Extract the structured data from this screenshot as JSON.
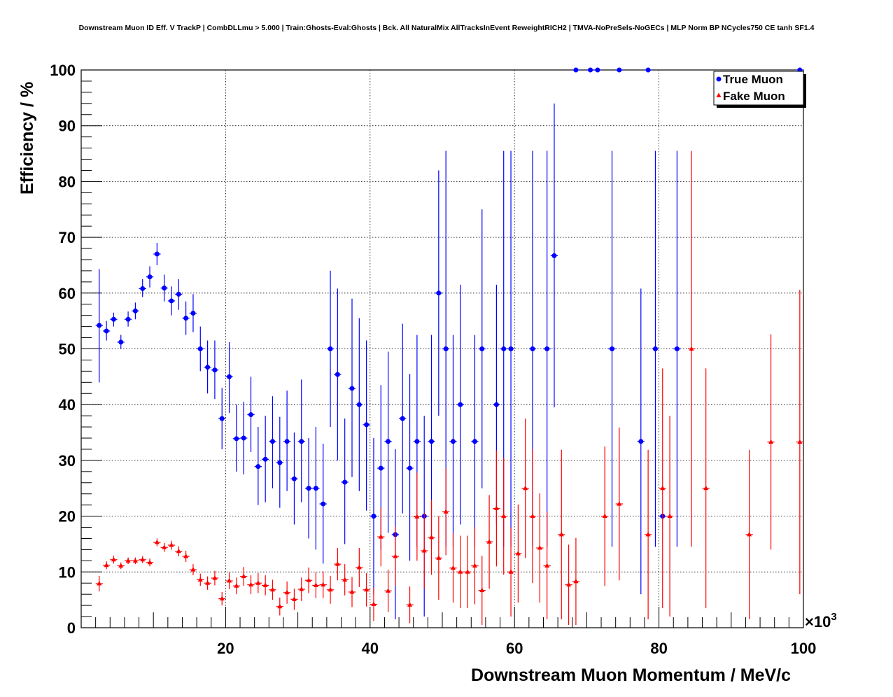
{
  "chart_data": {
    "type": "scatter",
    "title": "Downstream Muon ID Eff. V TrackP | CombDLLmu > 5.000 | Train:Ghosts-Eval:Ghosts | Bck. All NaturalMix AllTracksInEvent ReweightRICH2 | TMVA-NoPreSels-NoGECs | MLP Norm BP NCycles750 CE tanh SF1.4",
    "xlabel": "Downstream Muon Momentum / MeV/c",
    "ylabel": "Efficiency / %",
    "x_multiplier_label": "×10",
    "x_multiplier_exp": "3",
    "xlim": [
      0,
      100
    ],
    "ylim": [
      0,
      100
    ],
    "x_ticks": [
      20,
      40,
      60,
      80,
      100
    ],
    "y_ticks": [
      0,
      10,
      20,
      30,
      40,
      50,
      60,
      70,
      80,
      90,
      100
    ],
    "grid": true,
    "legend_position": "top-right",
    "series": [
      {
        "name": "True Muon",
        "color": "#0000ff",
        "marker": "circle",
        "points": [
          {
            "x": 2.5,
            "y": 54.2,
            "lo": 44.0,
            "hi": 64.3
          },
          {
            "x": 3.5,
            "y": 53.2,
            "lo": 51.5,
            "hi": 55.0
          },
          {
            "x": 4.5,
            "y": 55.3,
            "lo": 54.0,
            "hi": 56.5
          },
          {
            "x": 5.5,
            "y": 51.2,
            "lo": 50.0,
            "hi": 52.5
          },
          {
            "x": 6.5,
            "y": 55.3,
            "lo": 54.0,
            "hi": 56.7
          },
          {
            "x": 7.5,
            "y": 56.8,
            "lo": 55.3,
            "hi": 58.3
          },
          {
            "x": 8.5,
            "y": 60.8,
            "lo": 59.3,
            "hi": 62.5
          },
          {
            "x": 9.5,
            "y": 62.9,
            "lo": 61.0,
            "hi": 64.8
          },
          {
            "x": 10.5,
            "y": 67.0,
            "lo": 65.0,
            "hi": 69.0
          },
          {
            "x": 11.5,
            "y": 60.9,
            "lo": 58.5,
            "hi": 63.3
          },
          {
            "x": 12.5,
            "y": 58.6,
            "lo": 56.0,
            "hi": 61.2
          },
          {
            "x": 13.5,
            "y": 59.8,
            "lo": 57.0,
            "hi": 62.5
          },
          {
            "x": 14.5,
            "y": 55.5,
            "lo": 52.5,
            "hi": 58.5
          },
          {
            "x": 15.5,
            "y": 56.4,
            "lo": 53.0,
            "hi": 59.8
          },
          {
            "x": 16.5,
            "y": 50.0,
            "lo": 46.0,
            "hi": 54.0
          },
          {
            "x": 17.5,
            "y": 46.7,
            "lo": 42.0,
            "hi": 51.5
          },
          {
            "x": 18.5,
            "y": 46.2,
            "lo": 41.0,
            "hi": 51.5
          },
          {
            "x": 19.5,
            "y": 37.5,
            "lo": 32.0,
            "hi": 43.0
          },
          {
            "x": 20.5,
            "y": 45.0,
            "lo": 38.5,
            "hi": 51.2
          },
          {
            "x": 21.5,
            "y": 33.9,
            "lo": 28.0,
            "hi": 40.0
          },
          {
            "x": 22.5,
            "y": 34.0,
            "lo": 27.5,
            "hi": 40.5
          },
          {
            "x": 23.5,
            "y": 38.2,
            "lo": 31.5,
            "hi": 45.0
          },
          {
            "x": 24.5,
            "y": 28.9,
            "lo": 22.0,
            "hi": 36.0
          },
          {
            "x": 25.5,
            "y": 30.2,
            "lo": 22.5,
            "hi": 38.0
          },
          {
            "x": 26.5,
            "y": 33.4,
            "lo": 25.0,
            "hi": 41.5
          },
          {
            "x": 27.5,
            "y": 29.6,
            "lo": 21.5,
            "hi": 37.8
          },
          {
            "x": 28.5,
            "y": 33.4,
            "lo": 24.5,
            "hi": 42.5
          },
          {
            "x": 29.5,
            "y": 26.7,
            "lo": 18.5,
            "hi": 35.0
          },
          {
            "x": 30.5,
            "y": 33.4,
            "lo": 22.5,
            "hi": 44.5
          },
          {
            "x": 31.5,
            "y": 25.0,
            "lo": 16.0,
            "hi": 34.0
          },
          {
            "x": 32.5,
            "y": 25.0,
            "lo": 14.0,
            "hi": 36.0
          },
          {
            "x": 33.5,
            "y": 22.2,
            "lo": 11.5,
            "hi": 33.0
          },
          {
            "x": 34.5,
            "y": 50.0,
            "lo": 36.0,
            "hi": 64.0
          },
          {
            "x": 35.5,
            "y": 45.4,
            "lo": 30.0,
            "hi": 60.8
          },
          {
            "x": 36.5,
            "y": 26.1,
            "lo": 15.0,
            "hi": 37.5
          },
          {
            "x": 37.5,
            "y": 42.9,
            "lo": 27.0,
            "hi": 59.0
          },
          {
            "x": 38.5,
            "y": 40.0,
            "lo": 24.5,
            "hi": 55.5
          },
          {
            "x": 39.5,
            "y": 36.4,
            "lo": 21.0,
            "hi": 51.5
          },
          {
            "x": 40.5,
            "y": 20.0,
            "lo": 6.0,
            "hi": 34.0
          },
          {
            "x": 41.5,
            "y": 28.6,
            "lo": 14.0,
            "hi": 43.5
          },
          {
            "x": 42.5,
            "y": 33.4,
            "lo": 17.0,
            "hi": 49.5
          },
          {
            "x": 43.5,
            "y": 16.7,
            "lo": 1.5,
            "hi": 32.0
          },
          {
            "x": 44.5,
            "y": 37.5,
            "lo": 20.5,
            "hi": 54.5
          },
          {
            "x": 45.5,
            "y": 28.6,
            "lo": 12.0,
            "hi": 45.5
          },
          {
            "x": 46.5,
            "y": 33.4,
            "lo": 14.5,
            "hi": 52.5
          },
          {
            "x": 47.5,
            "y": 20.0,
            "lo": 2.0,
            "hi": 38.0
          },
          {
            "x": 48.5,
            "y": 33.4,
            "lo": 14.5,
            "hi": 52.5
          },
          {
            "x": 49.5,
            "y": 60.0,
            "lo": 38.0,
            "hi": 82.0
          },
          {
            "x": 50.5,
            "y": 50.0,
            "lo": 14.5,
            "hi": 85.5
          },
          {
            "x": 51.5,
            "y": 33.4,
            "lo": 14.5,
            "hi": 52.5
          },
          {
            "x": 52.5,
            "y": 40.0,
            "lo": 18.5,
            "hi": 61.5
          },
          {
            "x": 54.5,
            "y": 33.4,
            "lo": 14.5,
            "hi": 52.5
          },
          {
            "x": 55.5,
            "y": 50.0,
            "lo": 25.0,
            "hi": 75.0
          },
          {
            "x": 57.5,
            "y": 40.0,
            "lo": 18.5,
            "hi": 61.5
          },
          {
            "x": 58.5,
            "y": 50.0,
            "lo": 14.5,
            "hi": 85.5
          },
          {
            "x": 59.5,
            "y": 50.0,
            "lo": 14.5,
            "hi": 85.5
          },
          {
            "x": 62.5,
            "y": 50.0,
            "lo": 14.5,
            "hi": 85.5
          },
          {
            "x": 64.5,
            "y": 50.0,
            "lo": 14.5,
            "hi": 85.5
          },
          {
            "x": 65.5,
            "y": 66.7,
            "lo": 39.5,
            "hi": 94.0
          },
          {
            "x": 68.5,
            "y": 100.0,
            "lo": 100.0,
            "hi": 100.0
          },
          {
            "x": 70.5,
            "y": 100.0,
            "lo": 100.0,
            "hi": 100.0
          },
          {
            "x": 71.5,
            "y": 100.0,
            "lo": 100.0,
            "hi": 100.0
          },
          {
            "x": 73.5,
            "y": 50.0,
            "lo": 14.5,
            "hi": 85.5
          },
          {
            "x": 74.5,
            "y": 100.0,
            "lo": 100.0,
            "hi": 100.0
          },
          {
            "x": 77.5,
            "y": 33.4,
            "lo": 6.0,
            "hi": 60.8
          },
          {
            "x": 78.5,
            "y": 100.0,
            "lo": 100.0,
            "hi": 100.0
          },
          {
            "x": 79.5,
            "y": 50.0,
            "lo": 14.5,
            "hi": 85.5
          },
          {
            "x": 80.5,
            "y": 20.0,
            "lo": 20.0,
            "hi": 20.0
          },
          {
            "x": 82.5,
            "y": 50.0,
            "lo": 14.5,
            "hi": 85.5
          },
          {
            "x": 99.5,
            "y": 100.0,
            "lo": 100.0,
            "hi": 100.0
          }
        ]
      },
      {
        "name": "Fake Muon",
        "color": "#ff0000",
        "marker": "triangle",
        "points": [
          {
            "x": 2.5,
            "y": 7.9,
            "lo": 6.5,
            "hi": 9.3
          },
          {
            "x": 3.5,
            "y": 11.2,
            "lo": 10.5,
            "hi": 11.9
          },
          {
            "x": 4.5,
            "y": 12.2,
            "lo": 11.5,
            "hi": 12.9
          },
          {
            "x": 5.5,
            "y": 11.1,
            "lo": 10.5,
            "hi": 11.7
          },
          {
            "x": 6.5,
            "y": 12.0,
            "lo": 11.4,
            "hi": 12.6
          },
          {
            "x": 7.5,
            "y": 12.0,
            "lo": 11.4,
            "hi": 12.6
          },
          {
            "x": 8.5,
            "y": 12.2,
            "lo": 11.6,
            "hi": 12.8
          },
          {
            "x": 9.5,
            "y": 11.7,
            "lo": 11.0,
            "hi": 12.4
          },
          {
            "x": 10.5,
            "y": 15.3,
            "lo": 14.6,
            "hi": 16.0
          },
          {
            "x": 11.5,
            "y": 14.4,
            "lo": 13.6,
            "hi": 15.2
          },
          {
            "x": 12.5,
            "y": 14.8,
            "lo": 14.0,
            "hi": 15.6
          },
          {
            "x": 13.5,
            "y": 13.7,
            "lo": 12.8,
            "hi": 14.6
          },
          {
            "x": 14.5,
            "y": 12.8,
            "lo": 11.8,
            "hi": 13.8
          },
          {
            "x": 15.5,
            "y": 10.4,
            "lo": 9.4,
            "hi": 11.4
          },
          {
            "x": 16.5,
            "y": 8.6,
            "lo": 7.5,
            "hi": 9.7
          },
          {
            "x": 17.5,
            "y": 8.0,
            "lo": 6.8,
            "hi": 9.2
          },
          {
            "x": 18.5,
            "y": 8.9,
            "lo": 7.6,
            "hi": 10.2
          },
          {
            "x": 19.5,
            "y": 5.2,
            "lo": 4.0,
            "hi": 6.4
          },
          {
            "x": 20.5,
            "y": 8.4,
            "lo": 6.9,
            "hi": 9.9
          },
          {
            "x": 21.5,
            "y": 7.5,
            "lo": 6.0,
            "hi": 9.0
          },
          {
            "x": 22.5,
            "y": 9.2,
            "lo": 7.5,
            "hi": 10.9
          },
          {
            "x": 23.5,
            "y": 7.7,
            "lo": 6.0,
            "hi": 9.4
          },
          {
            "x": 24.5,
            "y": 8.0,
            "lo": 6.2,
            "hi": 9.8
          },
          {
            "x": 25.5,
            "y": 7.6,
            "lo": 5.8,
            "hi": 9.4
          },
          {
            "x": 26.5,
            "y": 6.8,
            "lo": 5.0,
            "hi": 8.6
          },
          {
            "x": 27.5,
            "y": 3.8,
            "lo": 2.2,
            "hi": 5.4
          },
          {
            "x": 28.5,
            "y": 6.3,
            "lo": 4.3,
            "hi": 8.3
          },
          {
            "x": 29.5,
            "y": 5.1,
            "lo": 3.2,
            "hi": 7.0
          },
          {
            "x": 30.5,
            "y": 6.9,
            "lo": 4.8,
            "hi": 9.0
          },
          {
            "x": 31.5,
            "y": 8.5,
            "lo": 6.2,
            "hi": 10.8
          },
          {
            "x": 32.5,
            "y": 7.6,
            "lo": 5.3,
            "hi": 9.9
          },
          {
            "x": 33.5,
            "y": 7.7,
            "lo": 5.3,
            "hi": 10.1
          },
          {
            "x": 34.5,
            "y": 6.8,
            "lo": 4.3,
            "hi": 9.3
          },
          {
            "x": 35.5,
            "y": 11.4,
            "lo": 8.5,
            "hi": 14.3
          },
          {
            "x": 36.5,
            "y": 8.6,
            "lo": 5.8,
            "hi": 11.4
          },
          {
            "x": 37.5,
            "y": 6.4,
            "lo": 3.7,
            "hi": 9.1
          },
          {
            "x": 38.5,
            "y": 10.8,
            "lo": 7.3,
            "hi": 14.3
          },
          {
            "x": 39.5,
            "y": 6.8,
            "lo": 3.8,
            "hi": 9.8
          },
          {
            "x": 40.5,
            "y": 4.2,
            "lo": 1.2,
            "hi": 7.2
          },
          {
            "x": 41.5,
            "y": 16.3,
            "lo": 11.0,
            "hi": 21.6
          },
          {
            "x": 42.5,
            "y": 6.6,
            "lo": 2.8,
            "hi": 10.4
          },
          {
            "x": 43.5,
            "y": 12.8,
            "lo": 7.5,
            "hi": 18.1
          },
          {
            "x": 45.5,
            "y": 4.1,
            "lo": 0.8,
            "hi": 7.4
          },
          {
            "x": 46.5,
            "y": 19.9,
            "lo": 12.0,
            "hi": 27.8
          },
          {
            "x": 47.5,
            "y": 13.8,
            "lo": 7.0,
            "hi": 20.6
          },
          {
            "x": 48.5,
            "y": 16.2,
            "lo": 9.5,
            "hi": 22.9
          },
          {
            "x": 49.5,
            "y": 12.5,
            "lo": 5.0,
            "hi": 20.0
          },
          {
            "x": 50.5,
            "y": 20.8,
            "lo": 13.0,
            "hi": 28.6
          },
          {
            "x": 51.5,
            "y": 10.7,
            "lo": 4.5,
            "hi": 16.9
          },
          {
            "x": 52.5,
            "y": 10.0,
            "lo": 3.5,
            "hi": 16.5
          },
          {
            "x": 53.5,
            "y": 10.0,
            "lo": 3.5,
            "hi": 16.5
          },
          {
            "x": 54.5,
            "y": 11.1,
            "lo": 4.2,
            "hi": 18.0
          },
          {
            "x": 55.5,
            "y": 6.7,
            "lo": 0.5,
            "hi": 12.9
          },
          {
            "x": 56.5,
            "y": 15.4,
            "lo": 7.0,
            "hi": 23.8
          },
          {
            "x": 57.5,
            "y": 21.4,
            "lo": 11.0,
            "hi": 31.8
          },
          {
            "x": 58.5,
            "y": 20.0,
            "lo": 9.5,
            "hi": 30.5
          },
          {
            "x": 59.5,
            "y": 10.0,
            "lo": 2.0,
            "hi": 18.0
          },
          {
            "x": 60.5,
            "y": 13.3,
            "lo": 4.5,
            "hi": 22.1
          },
          {
            "x": 61.5,
            "y": 25.0,
            "lo": 12.5,
            "hi": 37.5
          },
          {
            "x": 62.5,
            "y": 20.0,
            "lo": 8.0,
            "hi": 32.0
          },
          {
            "x": 63.5,
            "y": 14.3,
            "lo": 4.5,
            "hi": 24.1
          },
          {
            "x": 64.5,
            "y": 11.1,
            "lo": 1.5,
            "hi": 20.7
          },
          {
            "x": 66.5,
            "y": 16.7,
            "lo": 1.5,
            "hi": 31.9
          },
          {
            "x": 67.5,
            "y": 7.7,
            "lo": 0.5,
            "hi": 14.9
          },
          {
            "x": 68.5,
            "y": 8.3,
            "lo": 0.5,
            "hi": 16.1
          },
          {
            "x": 72.5,
            "y": 20.0,
            "lo": 7.5,
            "hi": 32.5
          },
          {
            "x": 74.5,
            "y": 22.2,
            "lo": 8.5,
            "hi": 35.9
          },
          {
            "x": 78.5,
            "y": 16.7,
            "lo": 1.5,
            "hi": 31.9
          },
          {
            "x": 80.5,
            "y": 25.0,
            "lo": 3.5,
            "hi": 46.5
          },
          {
            "x": 81.5,
            "y": 20.0,
            "lo": 2.0,
            "hi": 38.0
          },
          {
            "x": 84.5,
            "y": 50.0,
            "lo": 14.5,
            "hi": 85.5
          },
          {
            "x": 86.5,
            "y": 25.0,
            "lo": 3.5,
            "hi": 46.5
          },
          {
            "x": 92.5,
            "y": 16.7,
            "lo": 1.5,
            "hi": 31.9
          },
          {
            "x": 95.5,
            "y": 33.3,
            "lo": 14.0,
            "hi": 52.6
          },
          {
            "x": 99.5,
            "y": 33.3,
            "lo": 6.0,
            "hi": 60.6
          }
        ]
      }
    ]
  }
}
